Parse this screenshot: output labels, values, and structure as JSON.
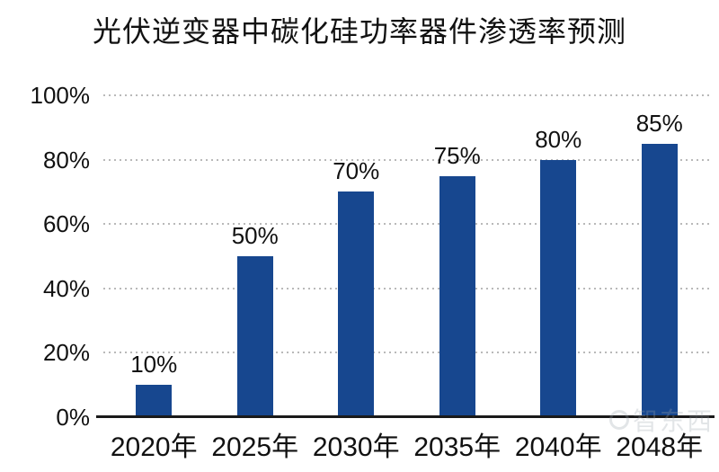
{
  "chart_data": {
    "type": "bar",
    "title": "光伏逆变器中碳化硅功率器件渗透率预测",
    "categories": [
      "2020年",
      "2025年",
      "2030年",
      "2035年",
      "2040年",
      "2048年"
    ],
    "values": [
      10,
      50,
      70,
      75,
      80,
      85
    ],
    "data_labels": [
      "10%",
      "50%",
      "70%",
      "75%",
      "80%",
      "85%"
    ],
    "xlabel": "",
    "ylabel": "",
    "ylim": [
      0,
      100
    ],
    "y_tick_interval": 20,
    "y_tick_labels": [
      "0%",
      "20%",
      "40%",
      "60%",
      "80%",
      "100%"
    ],
    "grid": "horizontal-dotted",
    "legend": "none",
    "colors": {
      "bar": "#17478F",
      "gridline": "#b9b9b9",
      "axis": "#1a1a1a",
      "text": "#111111",
      "background": "#ffffff"
    }
  },
  "watermark": {
    "text": "智东西"
  }
}
